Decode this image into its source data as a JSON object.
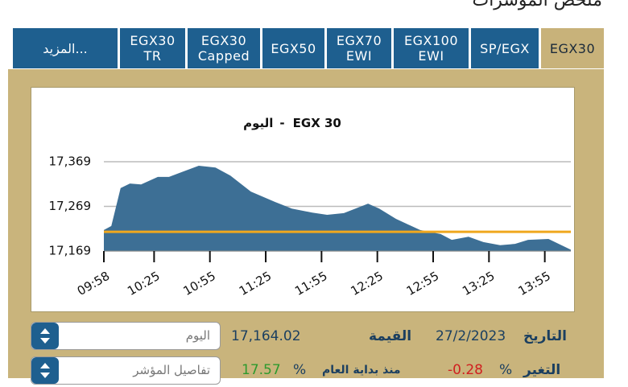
{
  "header": {
    "title": "ملخص المؤشرات"
  },
  "tabs": [
    [
      "EGX30"
    ],
    [
      "SP/EGX"
    ],
    [
      "EGX100",
      "EWI"
    ],
    [
      "EGX70",
      "EWI"
    ],
    [
      "EGX50"
    ],
    [
      "EGX30",
      "Capped"
    ],
    [
      "EGX30",
      "TR"
    ],
    [
      "المزيد..."
    ]
  ],
  "chart_data": {
    "type": "area",
    "title": "EGX 30",
    "subtitle": "اليوم",
    "x": [
      "09:58",
      "10:02",
      "10:07",
      "10:12",
      "10:18",
      "10:27",
      "10:33",
      "10:40",
      "10:49",
      "10:58",
      "11:06",
      "11:17",
      "11:30",
      "11:39",
      "11:50",
      "11:58",
      "12:07",
      "12:20",
      "12:26",
      "12:35",
      "12:48",
      "12:59",
      "13:05",
      "13:14",
      "13:22",
      "13:31",
      "13:39",
      "13:46",
      "13:57",
      "14:09"
    ],
    "values": [
      17216,
      17225,
      17310,
      17320,
      17318,
      17335,
      17335,
      17346,
      17360,
      17356,
      17338,
      17302,
      17279,
      17264,
      17255,
      17250,
      17254,
      17275,
      17264,
      17241,
      17216,
      17207,
      17194,
      17201,
      17189,
      17182,
      17185,
      17194,
      17196,
      17172
    ],
    "color": "#3d6f95",
    "reference": 17212,
    "reference_color": "#f0a81e",
    "xlim": [
      "09:58",
      "14:09"
    ],
    "xticks": [
      "09:58",
      "10:25",
      "10:55",
      "11:25",
      "11:55",
      "12:25",
      "12:55",
      "13:25",
      "13:55"
    ],
    "ylim": [
      17169,
      17396
    ],
    "yticks": [
      {
        "value": 17169,
        "label": "17,169"
      },
      {
        "value": 17269,
        "label": "17,269"
      },
      {
        "value": 17369,
        "label": "17,369"
      }
    ],
    "grid": true
  },
  "info": {
    "period": "اليوم",
    "value": "17,164.02",
    "value_label": "القيمة",
    "date": "27/2/2023",
    "date_label": "التاريخ",
    "details": "تفاصيل المؤشر",
    "ytd_value": "17.57",
    "ytd_pct": "%",
    "ytd_label": "منذ بداية العام",
    "change_value": "-0.28",
    "change_pct": "%",
    "change_label": "التغير"
  }
}
